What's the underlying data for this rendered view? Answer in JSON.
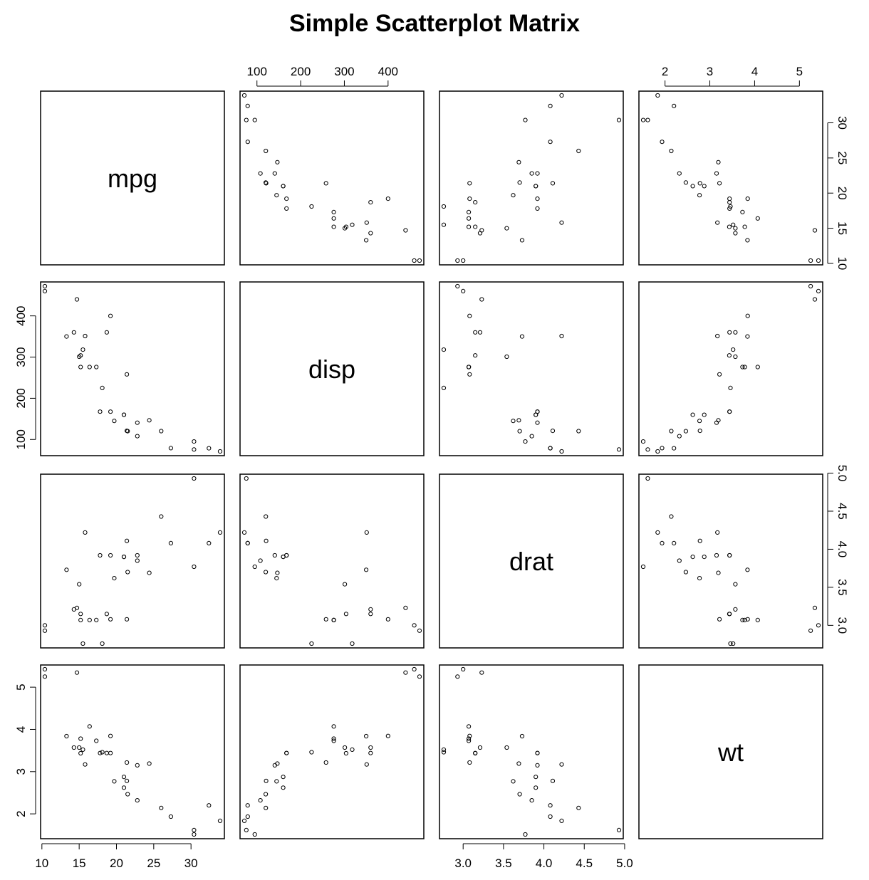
{
  "title": "Simple Scatterplot Matrix",
  "chart_data": {
    "type": "scatter",
    "title": "Simple Scatterplot Matrix",
    "variables": [
      "mpg",
      "disp",
      "drat",
      "wt"
    ],
    "axes": {
      "mpg": {
        "ticks": [
          10,
          15,
          20,
          25,
          30
        ],
        "tick_labels": [
          "10",
          "15",
          "20",
          "25",
          "30"
        ],
        "range": [
          10.4,
          33.9
        ]
      },
      "disp": {
        "ticks": [
          100,
          200,
          300,
          400
        ],
        "tick_labels": [
          "100",
          "200",
          "300",
          "400"
        ],
        "range": [
          71.1,
          472
        ]
      },
      "drat": {
        "ticks": [
          3.0,
          3.5,
          4.0,
          4.5,
          5.0
        ],
        "tick_labels": [
          "3.0",
          "3.5",
          "4.0",
          "4.5",
          "5.0"
        ],
        "range": [
          2.76,
          4.93
        ]
      },
      "wt": {
        "ticks": [
          2,
          3,
          4,
          5
        ],
        "tick_labels": [
          "2",
          "3",
          "4",
          "5"
        ],
        "range": [
          1.513,
          5.424
        ]
      }
    },
    "axis_sides": {
      "top": [
        "disp",
        "wt"
      ],
      "bottom": [
        "mpg",
        "drat"
      ],
      "left": [
        "disp",
        "wt"
      ],
      "right": [
        "mpg",
        "drat"
      ]
    },
    "points": [
      {
        "mpg": 21.0,
        "disp": 160.0,
        "drat": 3.9,
        "wt": 2.62
      },
      {
        "mpg": 21.0,
        "disp": 160.0,
        "drat": 3.9,
        "wt": 2.875
      },
      {
        "mpg": 22.8,
        "disp": 108.0,
        "drat": 3.85,
        "wt": 2.32
      },
      {
        "mpg": 21.4,
        "disp": 258.0,
        "drat": 3.08,
        "wt": 3.215
      },
      {
        "mpg": 18.7,
        "disp": 360.0,
        "drat": 3.15,
        "wt": 3.44
      },
      {
        "mpg": 18.1,
        "disp": 225.0,
        "drat": 2.76,
        "wt": 3.46
      },
      {
        "mpg": 14.3,
        "disp": 360.0,
        "drat": 3.21,
        "wt": 3.57
      },
      {
        "mpg": 24.4,
        "disp": 146.7,
        "drat": 3.69,
        "wt": 3.19
      },
      {
        "mpg": 22.8,
        "disp": 140.8,
        "drat": 3.92,
        "wt": 3.15
      },
      {
        "mpg": 19.2,
        "disp": 167.6,
        "drat": 3.92,
        "wt": 3.44
      },
      {
        "mpg": 17.8,
        "disp": 167.6,
        "drat": 3.92,
        "wt": 3.44
      },
      {
        "mpg": 16.4,
        "disp": 275.8,
        "drat": 3.07,
        "wt": 4.07
      },
      {
        "mpg": 17.3,
        "disp": 275.8,
        "drat": 3.07,
        "wt": 3.73
      },
      {
        "mpg": 15.2,
        "disp": 275.8,
        "drat": 3.07,
        "wt": 3.78
      },
      {
        "mpg": 10.4,
        "disp": 472.0,
        "drat": 2.93,
        "wt": 5.25
      },
      {
        "mpg": 10.4,
        "disp": 460.0,
        "drat": 3.0,
        "wt": 5.424
      },
      {
        "mpg": 14.7,
        "disp": 440.0,
        "drat": 3.23,
        "wt": 5.345
      },
      {
        "mpg": 32.4,
        "disp": 78.7,
        "drat": 4.08,
        "wt": 2.2
      },
      {
        "mpg": 30.4,
        "disp": 75.7,
        "drat": 4.93,
        "wt": 1.615
      },
      {
        "mpg": 33.9,
        "disp": 71.1,
        "drat": 4.22,
        "wt": 1.835
      },
      {
        "mpg": 21.5,
        "disp": 120.1,
        "drat": 3.7,
        "wt": 2.465
      },
      {
        "mpg": 15.5,
        "disp": 318.0,
        "drat": 2.76,
        "wt": 3.52
      },
      {
        "mpg": 15.2,
        "disp": 304.0,
        "drat": 3.15,
        "wt": 3.435
      },
      {
        "mpg": 13.3,
        "disp": 350.0,
        "drat": 3.73,
        "wt": 3.84
      },
      {
        "mpg": 19.2,
        "disp": 400.0,
        "drat": 3.08,
        "wt": 3.845
      },
      {
        "mpg": 27.3,
        "disp": 79.0,
        "drat": 4.08,
        "wt": 1.935
      },
      {
        "mpg": 26.0,
        "disp": 120.3,
        "drat": 4.43,
        "wt": 2.14
      },
      {
        "mpg": 30.4,
        "disp": 95.1,
        "drat": 3.77,
        "wt": 1.513
      },
      {
        "mpg": 15.8,
        "disp": 351.0,
        "drat": 4.22,
        "wt": 3.17
      },
      {
        "mpg": 19.7,
        "disp": 145.0,
        "drat": 3.62,
        "wt": 2.77
      },
      {
        "mpg": 15.0,
        "disp": 301.0,
        "drat": 3.54,
        "wt": 3.57
      },
      {
        "mpg": 21.4,
        "disp": 121.0,
        "drat": 4.11,
        "wt": 2.78
      }
    ],
    "grid": false,
    "legend": "none",
    "point_style": "open-circle",
    "colors": {
      "foreground": "#000000",
      "background": "#ffffff"
    }
  }
}
